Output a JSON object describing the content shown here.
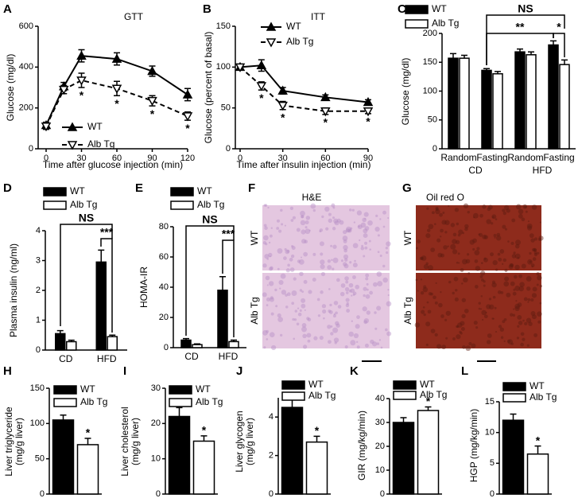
{
  "chart_data": [
    {
      "type": "line",
      "panel": "A",
      "title": "GTT",
      "xlabel": "Time after glucose injection (min)",
      "ylabel": "Glucose (mg/dl)",
      "x": [
        0,
        15,
        30,
        60,
        90,
        120
      ],
      "xlim": [
        0,
        120
      ],
      "xticks": [
        0,
        30,
        60,
        90,
        120
      ],
      "ylim": [
        0,
        600
      ],
      "yticks": [
        0,
        200,
        400,
        600
      ],
      "series": [
        {
          "name": "WT",
          "color": "#000000",
          "marker": "triangle-up",
          "marker_fill": "#000000",
          "dashed": false,
          "values": [
            115,
            305,
            455,
            440,
            380,
            265
          ],
          "errors": [
            15,
            20,
            30,
            30,
            25,
            30
          ]
        },
        {
          "name": "Alb Tg",
          "color": "#000000",
          "marker": "triangle-down",
          "marker_fill": "#ffffff",
          "dashed": true,
          "values": [
            110,
            290,
            335,
            295,
            235,
            160
          ],
          "errors": [
            15,
            20,
            35,
            35,
            25,
            20
          ],
          "significance": [
            null,
            null,
            "*",
            "*",
            "*",
            "*"
          ]
        }
      ]
    },
    {
      "type": "line",
      "panel": "B",
      "title": "ITT",
      "xlabel": "Time after insulin injection (min)",
      "ylabel": "Glucose (percent of basal)",
      "x": [
        0,
        15,
        30,
        60,
        90
      ],
      "xlim": [
        0,
        90
      ],
      "xticks": [
        0,
        30,
        60,
        90
      ],
      "ylim": [
        0,
        150
      ],
      "yticks": [
        0,
        50,
        100,
        150
      ],
      "series": [
        {
          "name": "WT",
          "color": "#000000",
          "marker": "triangle-up",
          "marker_fill": "#000000",
          "dashed": false,
          "values": [
            100,
            102,
            71,
            63,
            57
          ],
          "errors": [
            3,
            7,
            4,
            3,
            3
          ]
        },
        {
          "name": "Alb Tg",
          "color": "#000000",
          "marker": "triangle-down",
          "marker_fill": "#ffffff",
          "dashed": true,
          "values": [
            100,
            77,
            53,
            46,
            46
          ],
          "errors": [
            3,
            5,
            5,
            4,
            3
          ],
          "significance": [
            null,
            "*",
            "*",
            "*",
            "*"
          ]
        }
      ]
    },
    {
      "type": "bar",
      "panel": "C",
      "ylabel": "Glucose (mg/dl)",
      "categories": [
        "Random",
        "Fasting",
        "Random",
        "Fasting"
      ],
      "groups": [
        "CD",
        "HFD"
      ],
      "ylim": [
        0,
        200
      ],
      "yticks": [
        0,
        50,
        100,
        150,
        200
      ],
      "brackets": [
        "NS",
        "**",
        "*"
      ],
      "series": [
        {
          "name": "WT",
          "color": "#000000",
          "values": [
            157,
            136,
            168,
            180
          ],
          "errors": [
            8,
            3,
            5,
            7
          ]
        },
        {
          "name": "Alb Tg",
          "color": "#ffffff",
          "values": [
            157,
            130,
            163,
            146
          ],
          "errors": [
            5,
            4,
            5,
            8
          ]
        }
      ]
    },
    {
      "type": "bar",
      "panel": "D",
      "ylabel": "Plasma insulin (ng/ml)",
      "categories": [
        "CD",
        "HFD"
      ],
      "ylim": [
        0,
        4
      ],
      "yticks": [
        0,
        1,
        2,
        3,
        4
      ],
      "brackets": [
        "NS",
        "***"
      ],
      "series": [
        {
          "name": "WT",
          "color": "#000000",
          "values": [
            0.55,
            2.95
          ],
          "errors": [
            0.1,
            0.4
          ]
        },
        {
          "name": "Alb Tg",
          "color": "#ffffff",
          "values": [
            0.28,
            0.45
          ],
          "errors": [
            0.05,
            0.05
          ]
        }
      ]
    },
    {
      "type": "bar",
      "panel": "E",
      "ylabel": "HOMA-IR",
      "categories": [
        "CD",
        "HFD"
      ],
      "ylim": [
        0,
        80
      ],
      "yticks": [
        0,
        20,
        40,
        60,
        80
      ],
      "brackets": [
        "NS",
        "***"
      ],
      "series": [
        {
          "name": "WT",
          "color": "#000000",
          "values": [
            5,
            38
          ],
          "errors": [
            1,
            9
          ]
        },
        {
          "name": "Alb Tg",
          "color": "#ffffff",
          "values": [
            2,
            4
          ],
          "errors": [
            0.5,
            1
          ]
        }
      ]
    },
    {
      "type": "image",
      "panel": "F",
      "title": "H&E",
      "row_labels": [
        "WT",
        "Alb Tg"
      ]
    },
    {
      "type": "image",
      "panel": "G",
      "title": "Oil red O",
      "row_labels": [
        "WT",
        "Alb Tg"
      ]
    },
    {
      "type": "bar",
      "panel": "H",
      "ylabel": [
        "Liver triglyceride",
        "(mg/g liver)"
      ],
      "categories": [
        null
      ],
      "ylim": [
        0,
        150
      ],
      "yticks": [
        0,
        50,
        100,
        150
      ],
      "series": [
        {
          "name": "WT",
          "color": "#000000",
          "values": [
            105
          ],
          "errors": [
            7
          ]
        },
        {
          "name": "Alb Tg",
          "color": "#ffffff",
          "values": [
            70
          ],
          "errors": [
            9
          ],
          "significance": [
            "*"
          ]
        }
      ]
    },
    {
      "type": "bar",
      "panel": "I",
      "ylabel": [
        "Liver cholesterol",
        "(mg/g liver)"
      ],
      "categories": [
        null
      ],
      "ylim": [
        0,
        30
      ],
      "yticks": [
        0,
        10,
        20,
        30
      ],
      "series": [
        {
          "name": "WT",
          "color": "#000000",
          "values": [
            22
          ],
          "errors": [
            2.5
          ]
        },
        {
          "name": "Alb Tg",
          "color": "#ffffff",
          "values": [
            15
          ],
          "errors": [
            1.5
          ],
          "significance": [
            "*"
          ]
        }
      ]
    },
    {
      "type": "bar",
      "panel": "J",
      "ylabel": [
        "Liver glycogen",
        "(mg/g liver)"
      ],
      "categories": [
        null
      ],
      "ylim": [
        0,
        5
      ],
      "yticks": [
        0,
        2,
        4
      ],
      "series": [
        {
          "name": "WT",
          "color": "#000000",
          "values": [
            4.5
          ],
          "errors": [
            0.5
          ]
        },
        {
          "name": "Alb Tg",
          "color": "#ffffff",
          "values": [
            2.7
          ],
          "errors": [
            0.3
          ],
          "significance": [
            "*"
          ]
        }
      ]
    },
    {
      "type": "bar",
      "panel": "K",
      "ylabel": "GIR (mg/kg/min)",
      "categories": [
        null
      ],
      "ylim": [
        0,
        40
      ],
      "yticks": [
        0,
        10,
        20,
        30,
        40
      ],
      "series": [
        {
          "name": "WT",
          "color": "#000000",
          "values": [
            30
          ],
          "errors": [
            2
          ]
        },
        {
          "name": "Alb Tg",
          "color": "#ffffff",
          "values": [
            35
          ],
          "errors": [
            1.5
          ],
          "significance": [
            "*"
          ]
        }
      ]
    },
    {
      "type": "bar",
      "panel": "L",
      "ylabel": "HGP (mg/kg/min)",
      "categories": [
        null
      ],
      "ylim": [
        0,
        15
      ],
      "yticks": [
        0,
        5,
        10,
        15
      ],
      "series": [
        {
          "name": "WT",
          "color": "#000000",
          "values": [
            12
          ],
          "errors": [
            1
          ]
        },
        {
          "name": "Alb Tg",
          "color": "#ffffff",
          "values": [
            6.5
          ],
          "errors": [
            1.3
          ],
          "significance": [
            "*"
          ]
        }
      ]
    }
  ]
}
